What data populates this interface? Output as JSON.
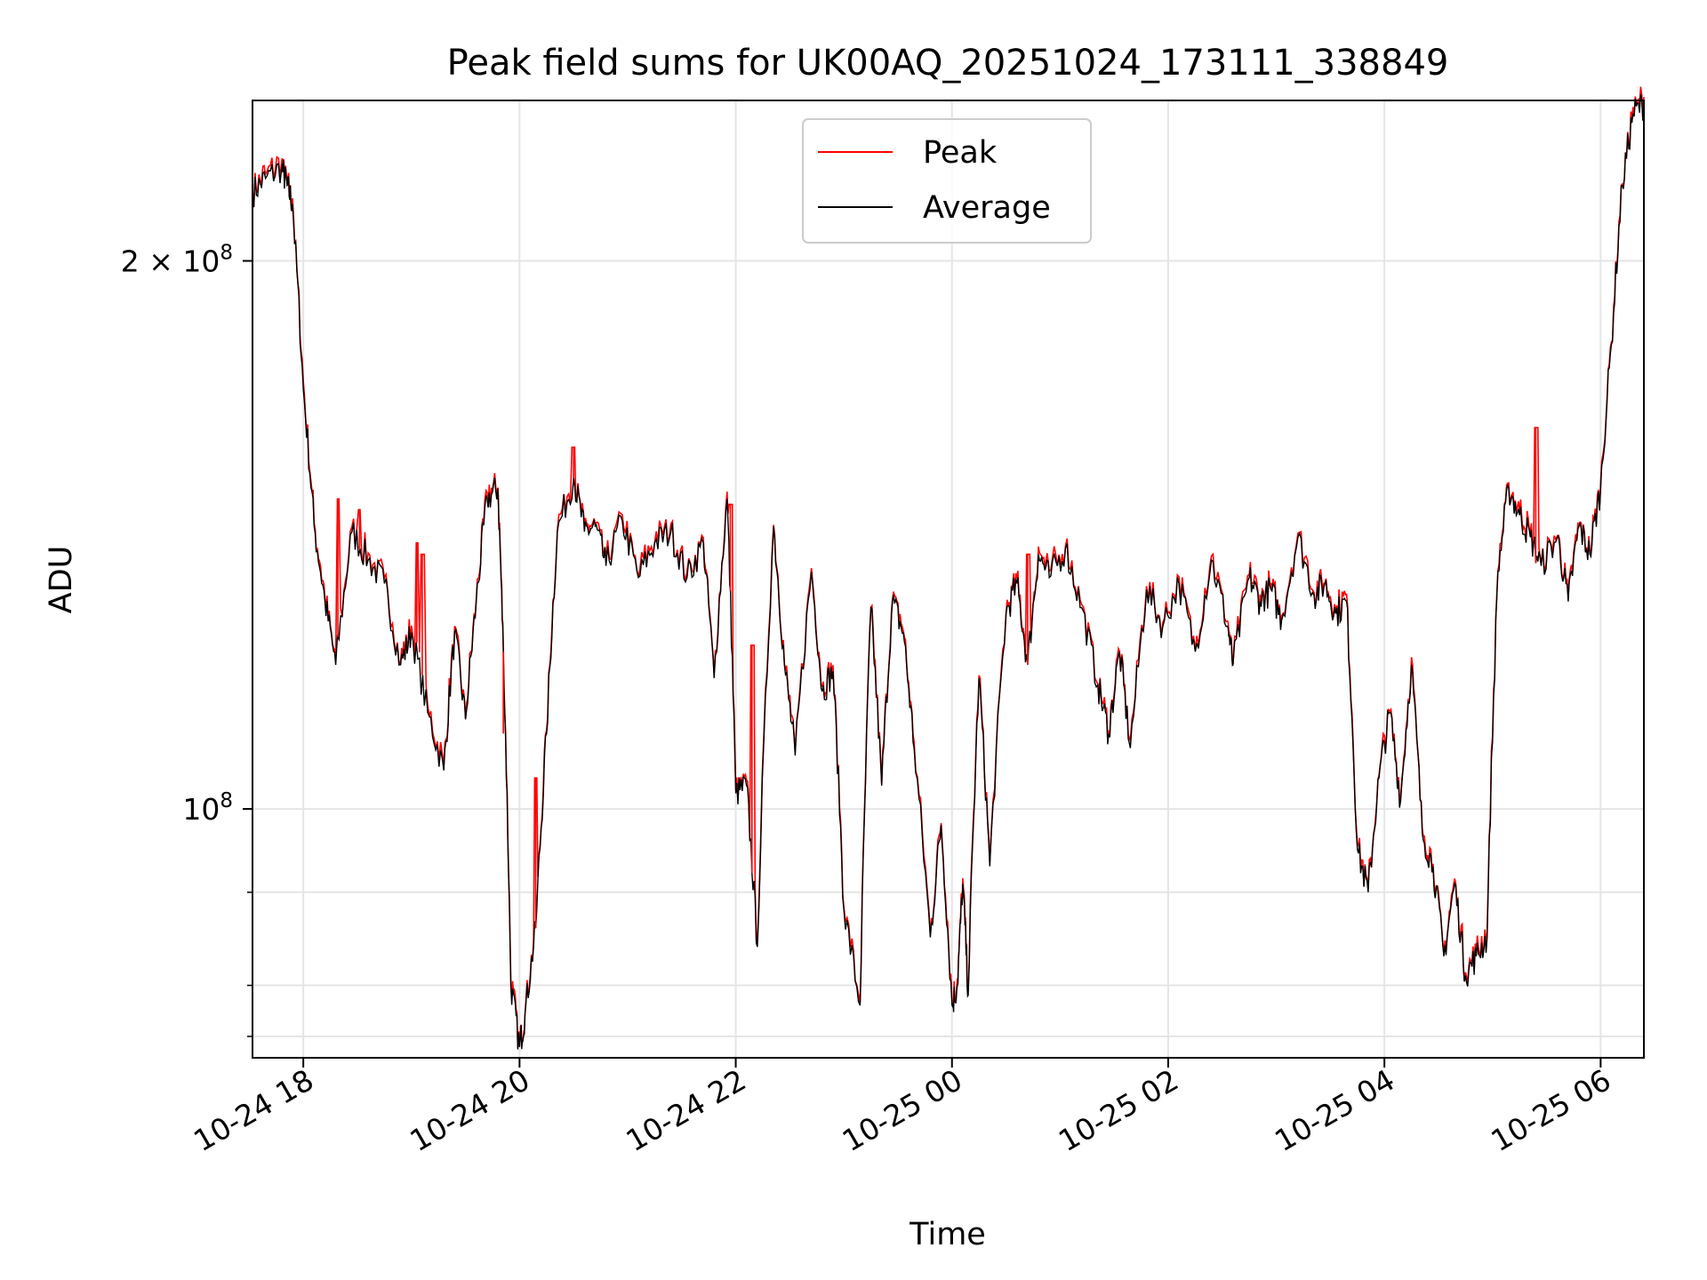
{
  "chart_data": {
    "type": "line",
    "title": "Peak field sums for UK00AQ_20251024_173111_338849",
    "xlabel": "Time",
    "ylabel": "ADU",
    "y_scale": "log",
    "ylim": [
      73000000,
      245000000
    ],
    "xlim_hours": [
      -0.47,
      12.4
    ],
    "x_ticks": [
      {
        "hour": 0,
        "label": "10-24 18"
      },
      {
        "hour": 2,
        "label": "10-24 20"
      },
      {
        "hour": 4,
        "label": "10-24 22"
      },
      {
        "hour": 6,
        "label": "10-25 00"
      },
      {
        "hour": 8,
        "label": "10-25 02"
      },
      {
        "hour": 10,
        "label": "10-25 04"
      },
      {
        "hour": 12,
        "label": "10-25 06"
      }
    ],
    "y_major_ticks": [
      {
        "value": 100000000,
        "base": "10",
        "exp": "8",
        "coef": ""
      },
      {
        "value": 200000000,
        "base": "10",
        "exp": "8",
        "coef": "2 × "
      }
    ],
    "y_minor_ticks": [
      75000000,
      80000000,
      90000000
    ],
    "grid": true,
    "legend_position": "upper center",
    "series": [
      {
        "name": "Peak",
        "color": "#ff0000"
      },
      {
        "name": "Average",
        "color": "#000000"
      }
    ],
    "average_points": [
      [
        -0.47,
        218
      ],
      [
        -0.35,
        222
      ],
      [
        -0.2,
        225
      ],
      [
        -0.15,
        220
      ],
      [
        -0.1,
        215
      ],
      [
        0.0,
        170
      ],
      [
        0.1,
        143
      ],
      [
        0.2,
        130
      ],
      [
        0.3,
        120
      ],
      [
        0.45,
        142
      ],
      [
        0.6,
        137
      ],
      [
        0.75,
        133
      ],
      [
        0.9,
        120
      ],
      [
        1.0,
        125
      ],
      [
        1.15,
        113
      ],
      [
        1.3,
        105
      ],
      [
        1.4,
        125
      ],
      [
        1.5,
        112
      ],
      [
        1.6,
        130
      ],
      [
        1.7,
        148
      ],
      [
        1.8,
        150
      ],
      [
        1.85,
        122
      ],
      [
        1.92,
        80
      ],
      [
        2.0,
        74
      ],
      [
        2.05,
        77
      ],
      [
        2.15,
        86
      ],
      [
        2.25,
        110
      ],
      [
        2.35,
        142
      ],
      [
        2.5,
        152
      ],
      [
        2.6,
        142
      ],
      [
        2.7,
        143
      ],
      [
        2.8,
        136
      ],
      [
        2.95,
        144
      ],
      [
        3.1,
        134
      ],
      [
        3.25,
        140
      ],
      [
        3.4,
        142
      ],
      [
        3.55,
        134
      ],
      [
        3.7,
        140
      ],
      [
        3.8,
        118
      ],
      [
        3.92,
        148
      ],
      [
        4.0,
        102
      ],
      [
        4.1,
        103
      ],
      [
        4.2,
        84
      ],
      [
        4.35,
        143
      ],
      [
        4.45,
        120
      ],
      [
        4.55,
        107
      ],
      [
        4.7,
        135
      ],
      [
        4.8,
        116
      ],
      [
        4.9,
        119
      ],
      [
        5.0,
        88
      ],
      [
        5.15,
        78
      ],
      [
        5.25,
        129
      ],
      [
        5.35,
        103
      ],
      [
        5.45,
        130
      ],
      [
        5.55,
        125
      ],
      [
        5.65,
        108
      ],
      [
        5.8,
        85
      ],
      [
        5.9,
        98
      ],
      [
        6.0,
        78
      ],
      [
        6.05,
        80
      ],
      [
        6.1,
        91
      ],
      [
        6.15,
        79
      ],
      [
        6.25,
        118
      ],
      [
        6.35,
        93
      ],
      [
        6.5,
        128
      ],
      [
        6.6,
        133
      ],
      [
        6.7,
        120
      ],
      [
        6.8,
        138
      ],
      [
        6.9,
        134
      ],
      [
        7.05,
        139
      ],
      [
        7.2,
        129
      ],
      [
        7.35,
        117
      ],
      [
        7.45,
        110
      ],
      [
        7.55,
        122
      ],
      [
        7.65,
        108
      ],
      [
        7.8,
        132
      ],
      [
        7.95,
        126
      ],
      [
        8.1,
        133
      ],
      [
        8.25,
        122
      ],
      [
        8.4,
        137
      ],
      [
        8.55,
        126
      ],
      [
        8.6,
        120
      ],
      [
        8.75,
        134
      ],
      [
        8.85,
        130
      ],
      [
        8.95,
        132
      ],
      [
        9.05,
        127
      ],
      [
        9.2,
        141
      ],
      [
        9.35,
        131
      ],
      [
        9.45,
        133
      ],
      [
        9.55,
        128
      ],
      [
        9.65,
        130
      ],
      [
        9.75,
        95
      ],
      [
        9.85,
        90
      ],
      [
        9.95,
        104
      ],
      [
        10.05,
        113
      ],
      [
        10.15,
        101
      ],
      [
        10.25,
        120
      ],
      [
        10.35,
        97
      ],
      [
        10.45,
        93
      ],
      [
        10.55,
        83
      ],
      [
        10.65,
        91
      ],
      [
        10.75,
        81
      ],
      [
        10.85,
        83
      ],
      [
        10.95,
        85
      ],
      [
        11.05,
        135
      ],
      [
        11.15,
        150
      ],
      [
        11.25,
        145
      ],
      [
        11.35,
        141
      ],
      [
        11.45,
        136
      ],
      [
        11.6,
        141
      ],
      [
        11.7,
        130
      ],
      [
        11.8,
        143
      ],
      [
        11.9,
        138
      ],
      [
        12.0,
        150
      ],
      [
        12.1,
        180
      ],
      [
        12.2,
        220
      ],
      [
        12.3,
        241
      ],
      [
        12.4,
        244
      ]
    ],
    "peak_spikes": [
      {
        "hour": 0.32,
        "value": 148
      },
      {
        "hour": 0.52,
        "value": 146
      },
      {
        "hour": 1.05,
        "value": 140
      },
      {
        "hour": 1.1,
        "value": 138
      },
      {
        "hour": 1.85,
        "value": 110
      },
      {
        "hour": 2.15,
        "value": 104
      },
      {
        "hour": 2.5,
        "value": 158
      },
      {
        "hour": 3.95,
        "value": 147
      },
      {
        "hour": 4.15,
        "value": 123
      },
      {
        "hour": 6.7,
        "value": 138
      },
      {
        "hour": 11.4,
        "value": 162
      }
    ]
  }
}
